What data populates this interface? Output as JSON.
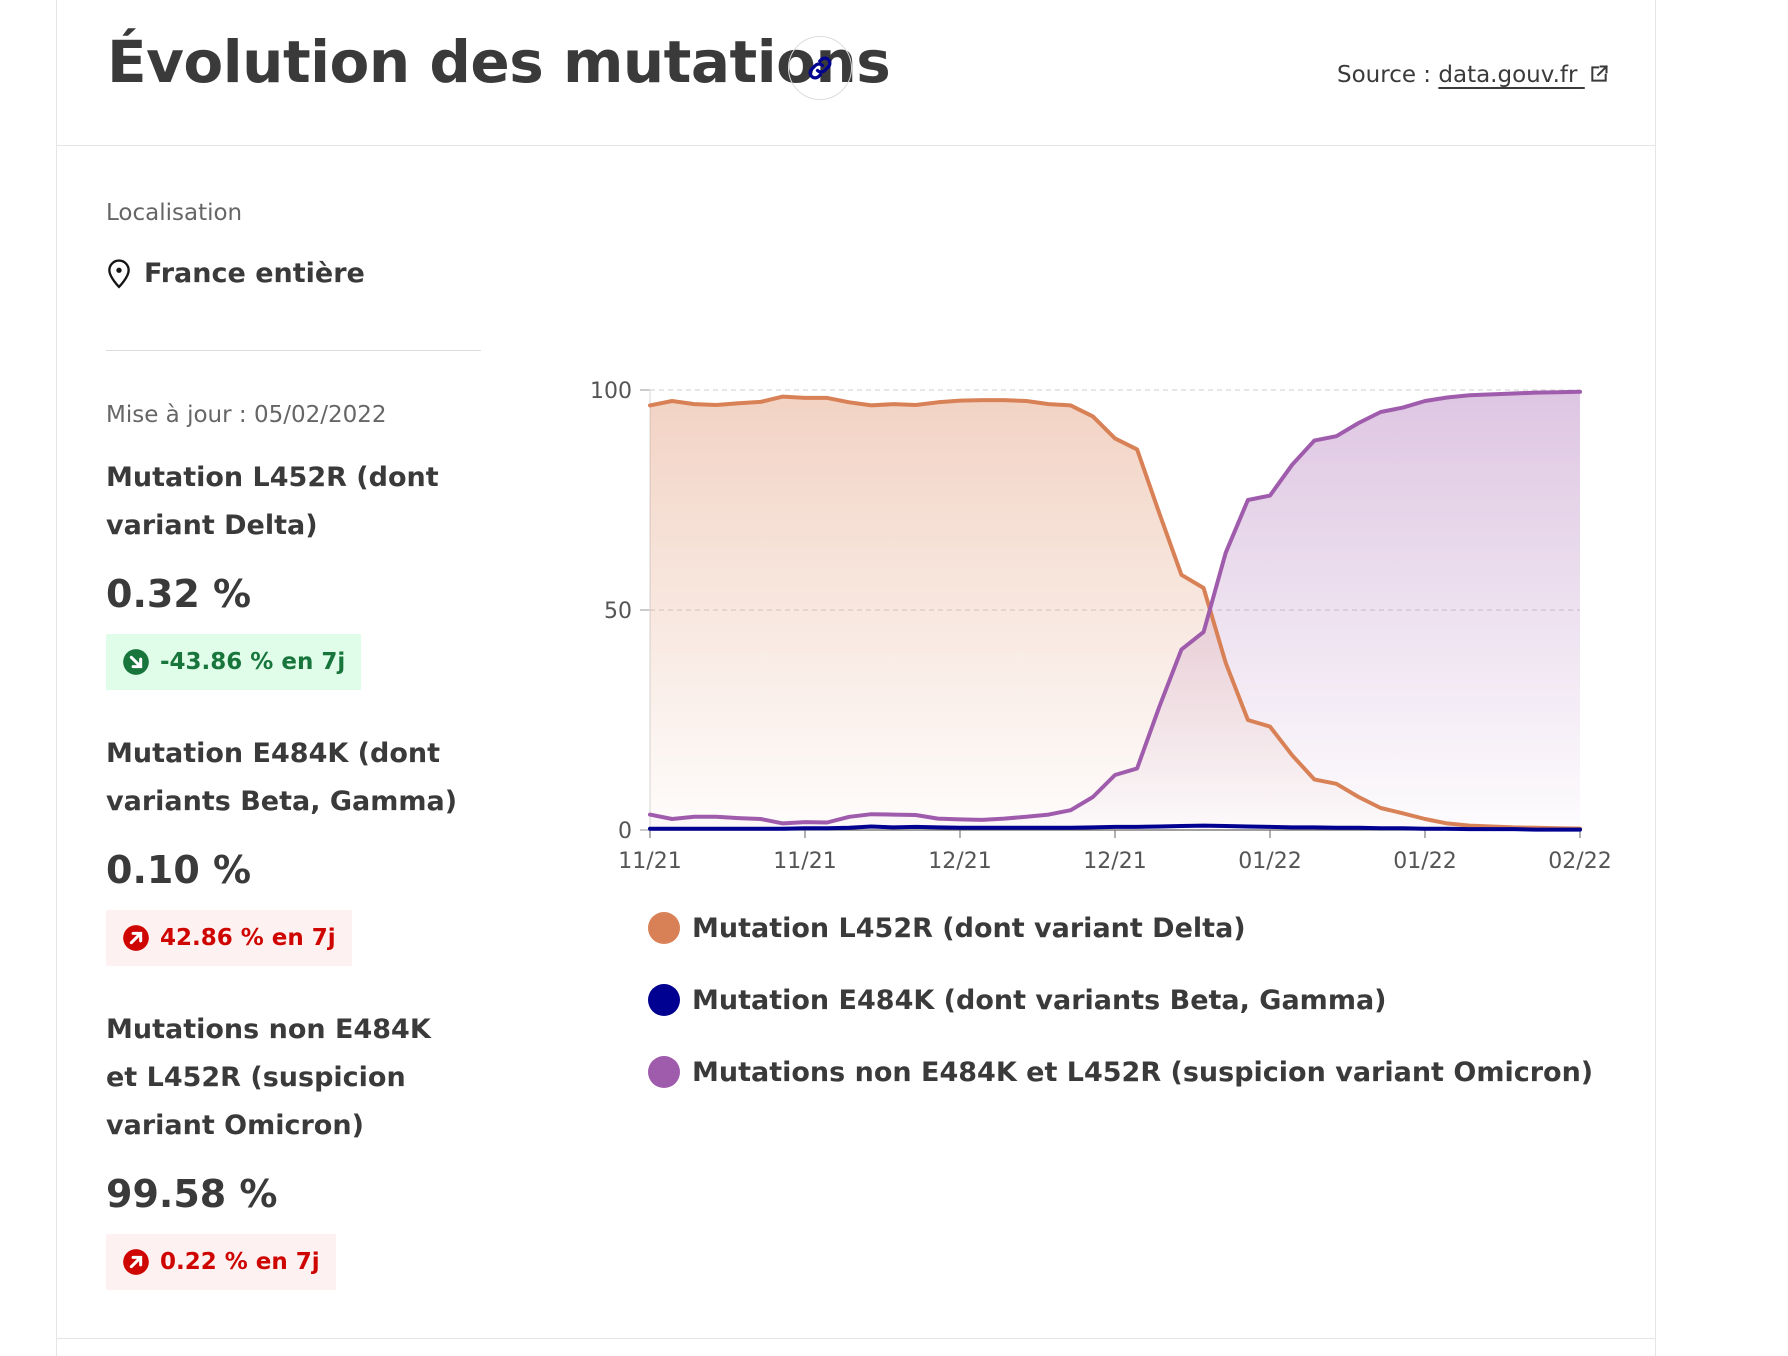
{
  "header": {
    "title": "Évolution des mutations",
    "source_prefix": "Source :",
    "source_link": "data.gouv.fr"
  },
  "sidebar": {
    "location_label": "Localisation",
    "location_value": "France entière",
    "update": "Mise à jour : 05/02/2022",
    "stats": [
      {
        "name": "Mutation L452R (dont variant Delta)",
        "value": "0.32 %",
        "change": "-43.86 % en 7j",
        "direction": "down"
      },
      {
        "name": "Mutation E484K (dont variants Beta, Gamma)",
        "value": "0.10 %",
        "change": "42.86 % en 7j",
        "direction": "up"
      },
      {
        "name": "Mutations non E484K et L452R (suspicion variant Omicron)",
        "value": "99.58 %",
        "change": "0.22 % en 7j",
        "direction": "up"
      }
    ]
  },
  "colors": {
    "delta": "#d98156",
    "beta_gamma": "#000091",
    "omicron": "#a05cac",
    "badge_down": "#18753c",
    "badge_up": "#ce0500"
  },
  "icons": {
    "link": "link-icon",
    "external": "external-link-icon",
    "location": "map-pin-icon",
    "arrow_down": "arrow-down-right-icon",
    "arrow_up": "arrow-up-right-icon"
  },
  "chart_data": {
    "type": "area",
    "title": "",
    "xlabel": "",
    "ylabel": "",
    "ylim": [
      0,
      100
    ],
    "y_ticks": [
      "0",
      "50",
      "100"
    ],
    "x_ticks": [
      "11/21",
      "11/21",
      "12/21",
      "12/21",
      "01/22",
      "01/22",
      "02/22"
    ],
    "grid": "horizontal dashed",
    "legend_placement": "bottom",
    "series": [
      {
        "name": "Mutation L452R (dont variant Delta)",
        "color": "#d98156",
        "values": [
          96.5,
          97.5,
          96.8,
          96.6,
          97.0,
          97.3,
          98.5,
          98.2,
          98.2,
          97.2,
          96.5,
          96.8,
          96.6,
          97.2,
          97.6,
          97.7,
          97.7,
          97.5,
          96.8,
          96.5,
          94.0,
          89.0,
          86.5,
          72.0,
          58.0,
          55.0,
          38.0,
          25.0,
          23.5,
          17.0,
          11.5,
          10.5,
          7.5,
          5.0,
          3.8,
          2.5,
          1.5,
          1.0,
          0.8,
          0.6,
          0.5,
          0.4,
          0.32
        ]
      },
      {
        "name": "Mutation E484K (dont variants Beta, Gamma)",
        "color": "#000091",
        "values": [
          0.3,
          0.3,
          0.3,
          0.3,
          0.3,
          0.3,
          0.3,
          0.4,
          0.4,
          0.5,
          0.8,
          0.6,
          0.7,
          0.6,
          0.5,
          0.5,
          0.5,
          0.5,
          0.5,
          0.5,
          0.6,
          0.7,
          0.7,
          0.8,
          0.9,
          1.0,
          0.9,
          0.8,
          0.7,
          0.6,
          0.6,
          0.5,
          0.5,
          0.4,
          0.4,
          0.3,
          0.3,
          0.2,
          0.2,
          0.2,
          0.1,
          0.1,
          0.1
        ]
      },
      {
        "name": "Mutations non E484K et L452R (suspicion variant Omicron)",
        "color": "#a05cac",
        "values": [
          3.5,
          2.5,
          3.0,
          3.0,
          2.7,
          2.5,
          1.5,
          1.8,
          1.7,
          3.0,
          3.6,
          3.5,
          3.4,
          2.6,
          2.4,
          2.3,
          2.6,
          3.0,
          3.5,
          4.5,
          7.5,
          12.5,
          14.0,
          28.0,
          41.0,
          45.0,
          63.0,
          75.0,
          76.0,
          83.0,
          88.5,
          89.5,
          92.5,
          95.0,
          96.0,
          97.5,
          98.3,
          98.8,
          99.0,
          99.2,
          99.4,
          99.5,
          99.58
        ]
      }
    ]
  }
}
